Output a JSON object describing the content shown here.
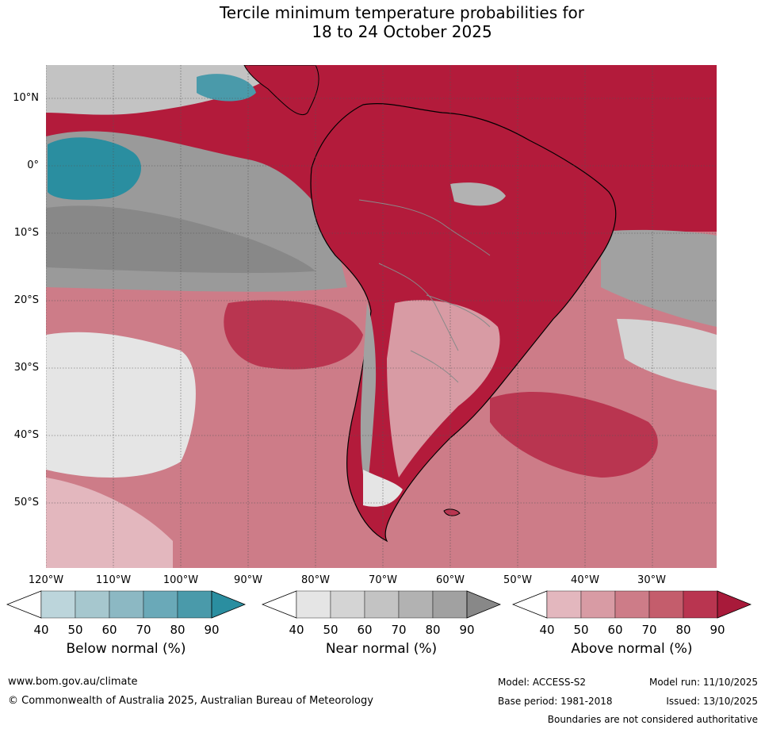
{
  "title_line1": "Tercile minimum temperature probabilities for",
  "title_line2": "18 to 24 October 2025",
  "map": {
    "region": "South America",
    "lat_labels": [
      "10°N",
      "0°",
      "10°S",
      "20°S",
      "30°S",
      "40°S",
      "50°S"
    ],
    "lon_labels": [
      "120°W",
      "110°W",
      "100°W",
      "90°W",
      "80°W",
      "70°W",
      "60°W",
      "50°W",
      "40°W",
      "30°W"
    ],
    "gridlines": true,
    "colors": {
      "land_above_dark": "#b31b3b",
      "ocean_above": "#c83a52",
      "near_normal": "#8c8c8c",
      "below_normal": "#2a8ea6",
      "coast": "#000000",
      "borders": "#8a8a8a"
    }
  },
  "colorbars": [
    {
      "name": "below",
      "title": "Below normal (%)",
      "ticks": [
        "40",
        "50",
        "60",
        "70",
        "80",
        "90"
      ],
      "colors": [
        "#bcd5db",
        "#a6c7ce",
        "#8cb8c3",
        "#6aa9b8",
        "#4a9aaa",
        "#2a8ea0"
      ]
    },
    {
      "name": "near",
      "title": "Near normal (%)",
      "ticks": [
        "40",
        "50",
        "60",
        "70",
        "80",
        "90"
      ],
      "colors": [
        "#e5e5e5",
        "#d4d4d4",
        "#c3c3c3",
        "#b2b2b2",
        "#a1a1a1",
        "#888888"
      ]
    },
    {
      "name": "above",
      "title": "Above normal (%)",
      "ticks": [
        "40",
        "50",
        "60",
        "70",
        "80",
        "90"
      ],
      "colors": [
        "#e3b7be",
        "#d89ba4",
        "#cd7c88",
        "#c45d6c",
        "#b93550",
        "#a81a3a"
      ]
    }
  ],
  "footer": {
    "url": "www.bom.gov.au/climate",
    "copyright": "© Commonwealth of Australia 2025, Australian Bureau of Meteorology",
    "model": "Model: ACCESS-S2",
    "base_period": "Base period: 1981-2018",
    "model_run": "Model run: 11/10/2025",
    "issued": "Issued: 13/10/2025",
    "disclaimer": "Boundaries are not considered authoritative"
  }
}
